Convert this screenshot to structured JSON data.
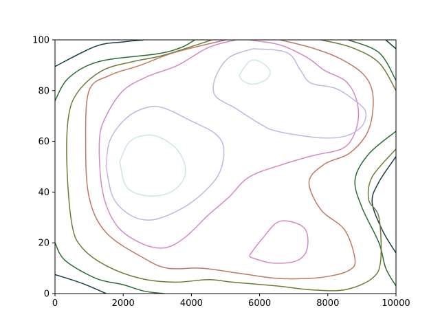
{
  "chart_data": {
    "type": "contour",
    "title": "",
    "xlabel": "",
    "ylabel": "",
    "xlim": [
      0,
      10000
    ],
    "ylim": [
      0,
      100
    ],
    "x_ticks": [
      {
        "value": 0,
        "label": "0"
      },
      {
        "value": 2000,
        "label": "2000"
      },
      {
        "value": 4000,
        "label": "4000"
      },
      {
        "value": 6000,
        "label": "6000"
      },
      {
        "value": 8000,
        "label": "8000"
      },
      {
        "value": 10000,
        "label": "10000"
      }
    ],
    "y_ticks": [
      {
        "value": 0,
        "label": "0"
      },
      {
        "value": 20,
        "label": "20"
      },
      {
        "value": 40,
        "label": "40"
      },
      {
        "value": 60,
        "label": "60"
      },
      {
        "value": 80,
        "label": "80"
      },
      {
        "value": 100,
        "label": "100"
      }
    ],
    "grid": false,
    "legend": "none",
    "colormap": "cubehelix",
    "levels": [
      {
        "color": "#183b48",
        "paths": [
          [
            [
              0,
              89.5
            ],
            [
              1200,
              97.5
            ],
            [
              2000,
              99.2
            ],
            [
              2600,
              100
            ]
          ],
          [
            [
              0,
              7.5
            ],
            [
              800,
              4
            ],
            [
              1500,
              0
            ]
          ],
          [
            [
              9700,
              100
            ],
            [
              10000,
              96.5
            ]
          ],
          [
            [
              10000,
              54
            ],
            [
              9500,
              44
            ],
            [
              9300,
              36
            ],
            [
              9600,
              25
            ],
            [
              10000,
              16
            ]
          ]
        ]
      },
      {
        "color": "#2a6b33",
        "paths": [
          [
            [
              0,
              76
            ],
            [
              400,
              85
            ],
            [
              1300,
              91.5
            ],
            [
              3000,
              94.5
            ],
            [
              3700,
              97
            ],
            [
              4100,
              100
            ]
          ],
          [
            [
              0,
              20
            ],
            [
              300,
              13
            ],
            [
              1200,
              6
            ],
            [
              2000,
              3.5
            ],
            [
              2600,
              1
            ],
            [
              3200,
              0
            ]
          ],
          [
            [
              8600,
              100
            ],
            [
              9500,
              95
            ],
            [
              10000,
              84
            ]
          ],
          [
            [
              10000,
              64
            ],
            [
              9200,
              55
            ],
            [
              8800,
              45
            ],
            [
              9000,
              34
            ],
            [
              9500,
              20
            ],
            [
              9700,
              10
            ],
            [
              10000,
              3
            ]
          ]
        ]
      },
      {
        "color": "#6e7a35",
        "paths": [
          [
            [
              4600,
              100
            ],
            [
              3200,
              94
            ],
            [
              2300,
              91.5
            ],
            [
              1400,
              88
            ],
            [
              700,
              80
            ],
            [
              400,
              70
            ],
            [
              350,
              50
            ],
            [
              500,
              27
            ],
            [
              800,
              18
            ],
            [
              1500,
              11
            ],
            [
              2500,
              6
            ],
            [
              3500,
              4.5
            ],
            [
              4500,
              5.5
            ],
            [
              5200,
              4.5
            ],
            [
              6500,
              3
            ],
            [
              7500,
              1.5
            ],
            [
              8500,
              1.5
            ],
            [
              9300,
              6
            ],
            [
              9550,
              13
            ],
            [
              9500,
              30
            ],
            [
              9200,
              37
            ],
            [
              9300,
              46
            ],
            [
              10000,
              57
            ]
          ],
          [
            [
              7800,
              100
            ],
            [
              8700,
              97
            ],
            [
              9500,
              91
            ],
            [
              10000,
              80
            ]
          ]
        ]
      },
      {
        "color": "#bf7762",
        "paths": [
          [
            [
              5000,
              100
            ],
            [
              3500,
              95
            ],
            [
              2500,
              90
            ],
            [
              1600,
              86
            ],
            [
              1000,
              80
            ],
            [
              900,
              60
            ],
            [
              1000,
              38
            ],
            [
              1500,
              24
            ],
            [
              2600,
              14
            ],
            [
              3300,
              10
            ],
            [
              4300,
              10
            ],
            [
              5400,
              8
            ],
            [
              6500,
              6
            ],
            [
              7500,
              6
            ],
            [
              8100,
              7
            ],
            [
              8600,
              9
            ],
            [
              8800,
              13
            ],
            [
              8500,
              25
            ],
            [
              7800,
              33
            ],
            [
              7450,
              44
            ],
            [
              7900,
              51
            ],
            [
              8600,
              55
            ],
            [
              9100,
              62
            ],
            [
              9300,
              70
            ],
            [
              9300,
              80
            ],
            [
              9000,
              87
            ],
            [
              8300,
              93
            ],
            [
              7500,
              97
            ],
            [
              6600,
              100
            ]
          ]
        ]
      },
      {
        "color": "#d487c7",
        "paths": [
          [
            [
              5300,
              100
            ],
            [
              4500,
              97
            ],
            [
              3600,
              90
            ],
            [
              2700,
              85.5
            ],
            [
              2000,
              80
            ],
            [
              1500,
              70
            ],
            [
              1300,
              60
            ],
            [
              1400,
              40
            ],
            [
              1800,
              27
            ],
            [
              2500,
              20
            ],
            [
              3200,
              18
            ],
            [
              3800,
              22
            ],
            [
              4500,
              31
            ],
            [
              5100,
              38
            ],
            [
              5700,
              46
            ],
            [
              6700,
              51
            ],
            [
              7600,
              54.5
            ],
            [
              8400,
              57
            ],
            [
              8750,
              62
            ],
            [
              8900,
              70
            ],
            [
              8800,
              78
            ],
            [
              8500,
              84
            ],
            [
              7900,
              88
            ],
            [
              7400,
              93
            ],
            [
              6600,
              98
            ],
            [
              5700,
              100
            ]
          ],
          [
            [
              5700,
              15
            ],
            [
              6100,
              22
            ],
            [
              6600,
              28.5
            ],
            [
              7300,
              26
            ],
            [
              7400,
              18
            ],
            [
              7100,
              13
            ],
            [
              6400,
              12
            ],
            [
              5800,
              14
            ],
            [
              5700,
              15
            ]
          ]
        ]
      },
      {
        "color": "#bcb7e6",
        "paths": [
          [
            [
              5800,
              96.5
            ],
            [
              6800,
              95
            ],
            [
              7200,
              88
            ],
            [
              7500,
              83
            ],
            [
              8200,
              81
            ],
            [
              8700,
              77
            ],
            [
              9100,
              72
            ],
            [
              9000,
              66
            ],
            [
              8500,
              62
            ],
            [
              7700,
              61.5
            ],
            [
              6500,
              64
            ],
            [
              6000,
              67
            ],
            [
              5300,
              73
            ],
            [
              4700,
              78
            ],
            [
              4700,
              85
            ],
            [
              5100,
              93
            ],
            [
              5800,
              96.5
            ]
          ],
          [
            [
              1500,
              50
            ],
            [
              1700,
              38
            ],
            [
              2200,
              31
            ],
            [
              2800,
              29
            ],
            [
              3500,
              32
            ],
            [
              4200,
              38
            ],
            [
              4800,
              47
            ],
            [
              4950,
              57
            ],
            [
              4700,
              63
            ],
            [
              4000,
              68
            ],
            [
              3100,
              73.5
            ],
            [
              2500,
              72.5
            ],
            [
              2000,
              68
            ],
            [
              1600,
              60
            ],
            [
              1500,
              50
            ]
          ]
        ]
      },
      {
        "color": "#c9e8e5",
        "paths": [
          [
            [
              1900,
              52
            ],
            [
              2100,
              42
            ],
            [
              2700,
              38.5
            ],
            [
              3400,
              40
            ],
            [
              3800,
              46
            ],
            [
              3750,
              53
            ],
            [
              3400,
              59
            ],
            [
              2800,
              62.5
            ],
            [
              2200,
              60
            ],
            [
              1900,
              52
            ]
          ],
          [
            [
              5400,
              86
            ],
            [
              5700,
              91.5
            ],
            [
              6000,
              91.5
            ],
            [
              6300,
              88
            ],
            [
              6200,
              84.5
            ],
            [
              5800,
              82.5
            ],
            [
              5500,
              84
            ],
            [
              5400,
              86
            ]
          ]
        ]
      }
    ]
  }
}
